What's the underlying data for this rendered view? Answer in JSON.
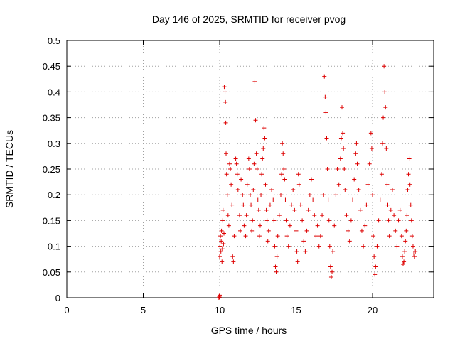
{
  "chart_data": {
    "type": "scatter",
    "title": "Day 146 of 2025, SRMTID for receiver pvog",
    "xlabel": "GPS time / hours",
    "ylabel": "SRMTID / TECUs",
    "xlim": [
      0,
      24
    ],
    "ylim": [
      0,
      0.5
    ],
    "x_ticks": [
      0,
      5,
      10,
      15,
      20
    ],
    "x_tick_labels": [
      "0",
      "5",
      "10",
      "15",
      "20"
    ],
    "y_ticks": [
      0,
      0.05,
      0.1,
      0.15,
      0.2,
      0.25,
      0.3,
      0.35,
      0.4,
      0.45,
      0.5
    ],
    "y_tick_labels": [
      "0",
      "0.05",
      "0.1",
      "0.15",
      "0.2",
      "0.25",
      "0.3",
      "0.35",
      "0.4",
      "0.45",
      "0.5"
    ],
    "grid": true,
    "marker": "+",
    "marker_color": "#dd0000",
    "series": [
      {
        "name": "SRMTID",
        "points": [
          [
            9.95,
            0.0
          ],
          [
            9.97,
            0.003
          ],
          [
            10.0,
            0.005
          ],
          [
            9.98,
            0.001
          ],
          [
            10.0,
            0.08
          ],
          [
            10.02,
            0.1
          ],
          [
            10.05,
            0.12
          ],
          [
            10.08,
            0.09
          ],
          [
            10.1,
            0.11
          ],
          [
            10.12,
            0.13
          ],
          [
            10.15,
            0.07
          ],
          [
            10.18,
            0.095
          ],
          [
            10.2,
            0.15
          ],
          [
            10.22,
            0.17
          ],
          [
            10.25,
            0.105
          ],
          [
            10.28,
            0.125
          ],
          [
            10.3,
            0.41
          ],
          [
            10.35,
            0.4
          ],
          [
            10.38,
            0.38
          ],
          [
            10.4,
            0.34
          ],
          [
            10.42,
            0.28
          ],
          [
            10.45,
            0.24
          ],
          [
            10.5,
            0.2
          ],
          [
            10.55,
            0.16
          ],
          [
            10.6,
            0.14
          ],
          [
            10.65,
            0.26
          ],
          [
            10.7,
            0.25
          ],
          [
            10.75,
            0.22
          ],
          [
            10.8,
            0.18
          ],
          [
            10.85,
            0.08
          ],
          [
            10.9,
            0.07
          ],
          [
            10.95,
            0.12
          ],
          [
            11.0,
            0.19
          ],
          [
            11.05,
            0.27
          ],
          [
            11.1,
            0.26
          ],
          [
            11.15,
            0.24
          ],
          [
            11.2,
            0.21
          ],
          [
            11.3,
            0.16
          ],
          [
            11.35,
            0.13
          ],
          [
            11.4,
            0.23
          ],
          [
            11.5,
            0.2
          ],
          [
            11.55,
            0.18
          ],
          [
            11.6,
            0.14
          ],
          [
            11.7,
            0.12
          ],
          [
            11.75,
            0.16
          ],
          [
            11.8,
            0.22
          ],
          [
            11.9,
            0.27
          ],
          [
            11.95,
            0.25
          ],
          [
            12.0,
            0.2
          ],
          [
            12.05,
            0.18
          ],
          [
            12.1,
            0.13
          ],
          [
            12.15,
            0.15
          ],
          [
            12.2,
            0.21
          ],
          [
            12.25,
            0.26
          ],
          [
            12.3,
            0.42
          ],
          [
            12.35,
            0.345
          ],
          [
            12.4,
            0.28
          ],
          [
            12.45,
            0.25
          ],
          [
            12.5,
            0.19
          ],
          [
            12.55,
            0.17
          ],
          [
            12.6,
            0.12
          ],
          [
            12.65,
            0.14
          ],
          [
            12.7,
            0.2
          ],
          [
            12.75,
            0.24
          ],
          [
            12.8,
            0.27
          ],
          [
            12.85,
            0.29
          ],
          [
            12.9,
            0.33
          ],
          [
            12.95,
            0.31
          ],
          [
            13.0,
            0.22
          ],
          [
            13.05,
            0.17
          ],
          [
            13.1,
            0.15
          ],
          [
            13.15,
            0.11
          ],
          [
            13.2,
            0.13
          ],
          [
            13.3,
            0.18
          ],
          [
            13.4,
            0.21
          ],
          [
            13.5,
            0.19
          ],
          [
            13.55,
            0.15
          ],
          [
            13.6,
            0.1
          ],
          [
            13.65,
            0.06
          ],
          [
            13.7,
            0.05
          ],
          [
            13.75,
            0.08
          ],
          [
            13.8,
            0.12
          ],
          [
            13.9,
            0.16
          ],
          [
            14.0,
            0.2
          ],
          [
            14.05,
            0.24
          ],
          [
            14.1,
            0.3
          ],
          [
            14.15,
            0.28
          ],
          [
            14.2,
            0.25
          ],
          [
            14.25,
            0.23
          ],
          [
            14.3,
            0.19
          ],
          [
            14.35,
            0.15
          ],
          [
            14.4,
            0.12
          ],
          [
            14.5,
            0.1
          ],
          [
            14.6,
            0.14
          ],
          [
            14.7,
            0.18
          ],
          [
            14.8,
            0.21
          ],
          [
            14.9,
            0.17
          ],
          [
            15.0,
            0.13
          ],
          [
            15.05,
            0.09
          ],
          [
            15.1,
            0.07
          ],
          [
            15.15,
            0.24
          ],
          [
            15.2,
            0.22
          ],
          [
            15.3,
            0.18
          ],
          [
            15.4,
            0.15
          ],
          [
            15.5,
            0.11
          ],
          [
            15.6,
            0.09
          ],
          [
            15.7,
            0.13
          ],
          [
            15.8,
            0.17
          ],
          [
            15.9,
            0.2
          ],
          [
            16.0,
            0.23
          ],
          [
            16.1,
            0.19
          ],
          [
            16.2,
            0.16
          ],
          [
            16.3,
            0.12
          ],
          [
            16.4,
            0.14
          ],
          [
            16.5,
            0.1
          ],
          [
            16.6,
            0.12
          ],
          [
            16.7,
            0.16
          ],
          [
            16.8,
            0.2
          ],
          [
            16.85,
            0.43
          ],
          [
            16.9,
            0.39
          ],
          [
            16.95,
            0.36
          ],
          [
            17.0,
            0.31
          ],
          [
            17.05,
            0.25
          ],
          [
            17.1,
            0.19
          ],
          [
            17.15,
            0.15
          ],
          [
            17.2,
            0.1
          ],
          [
            17.25,
            0.06
          ],
          [
            17.3,
            0.04
          ],
          [
            17.35,
            0.05
          ],
          [
            17.4,
            0.09
          ],
          [
            17.5,
            0.14
          ],
          [
            17.6,
            0.2
          ],
          [
            17.7,
            0.25
          ],
          [
            17.8,
            0.22
          ],
          [
            17.9,
            0.27
          ],
          [
            17.95,
            0.31
          ],
          [
            18.0,
            0.37
          ],
          [
            18.05,
            0.32
          ],
          [
            18.1,
            0.29
          ],
          [
            18.15,
            0.25
          ],
          [
            18.2,
            0.21
          ],
          [
            18.3,
            0.16
          ],
          [
            18.4,
            0.13
          ],
          [
            18.5,
            0.11
          ],
          [
            18.6,
            0.15
          ],
          [
            18.7,
            0.19
          ],
          [
            18.8,
            0.23
          ],
          [
            18.9,
            0.28
          ],
          [
            18.95,
            0.3
          ],
          [
            19.0,
            0.26
          ],
          [
            19.1,
            0.21
          ],
          [
            19.2,
            0.17
          ],
          [
            19.3,
            0.13
          ],
          [
            19.4,
            0.1
          ],
          [
            19.5,
            0.14
          ],
          [
            19.6,
            0.18
          ],
          [
            19.7,
            0.22
          ],
          [
            19.8,
            0.26
          ],
          [
            19.9,
            0.32
          ],
          [
            19.95,
            0.29
          ],
          [
            20.0,
            0.2
          ],
          [
            20.05,
            0.12
          ],
          [
            20.1,
            0.08
          ],
          [
            20.15,
            0.045
          ],
          [
            20.2,
            0.06
          ],
          [
            20.3,
            0.1
          ],
          [
            20.4,
            0.15
          ],
          [
            20.5,
            0.19
          ],
          [
            20.6,
            0.24
          ],
          [
            20.65,
            0.3
          ],
          [
            20.7,
            0.35
          ],
          [
            20.75,
            0.45
          ],
          [
            20.8,
            0.4
          ],
          [
            20.85,
            0.37
          ],
          [
            20.9,
            0.29
          ],
          [
            20.95,
            0.22
          ],
          [
            21.0,
            0.18
          ],
          [
            21.05,
            0.15
          ],
          [
            21.1,
            0.12
          ],
          [
            21.2,
            0.17
          ],
          [
            21.3,
            0.21
          ],
          [
            21.4,
            0.16
          ],
          [
            21.5,
            0.13
          ],
          [
            21.6,
            0.1
          ],
          [
            21.7,
            0.15
          ],
          [
            21.8,
            0.17
          ],
          [
            21.9,
            0.12
          ],
          [
            21.95,
            0.08
          ],
          [
            22.0,
            0.065
          ],
          [
            22.05,
            0.07
          ],
          [
            22.1,
            0.09
          ],
          [
            22.15,
            0.11
          ],
          [
            22.2,
            0.13
          ],
          [
            22.25,
            0.16
          ],
          [
            22.3,
            0.21
          ],
          [
            22.35,
            0.24
          ],
          [
            22.4,
            0.27
          ],
          [
            22.45,
            0.22
          ],
          [
            22.5,
            0.18
          ],
          [
            22.55,
            0.15
          ],
          [
            22.6,
            0.12
          ],
          [
            22.65,
            0.1
          ],
          [
            22.7,
            0.085
          ],
          [
            22.75,
            0.08
          ],
          [
            22.8,
            0.09
          ]
        ]
      }
    ]
  }
}
